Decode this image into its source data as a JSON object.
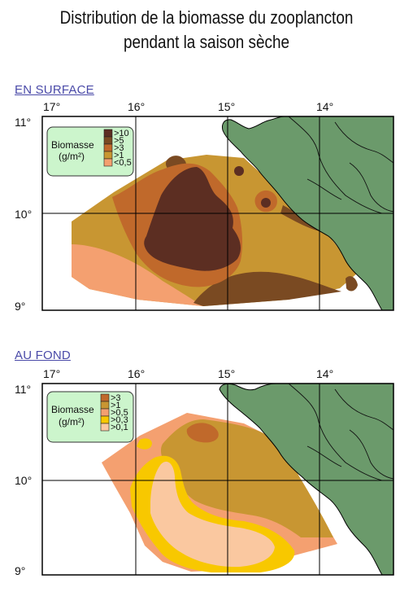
{
  "title_line1": "Distribution de la biomasse du zooplancton",
  "title_line2": "pendant la saison sèche",
  "maps": [
    {
      "id": "surface",
      "heading": "EN SURFACE",
      "legend_title_1": "Biomasse",
      "legend_title_2": "(g/m²)",
      "legend": [
        {
          "label": ">10",
          "color": "#5c2e22"
        },
        {
          "label": ">5",
          "color": "#7a4a22"
        },
        {
          "label": ">3",
          "color": "#c0692b"
        },
        {
          "label": ">1",
          "color": "#c89632"
        },
        {
          "label": "<0,5",
          "color": "#f4a070"
        }
      ]
    },
    {
      "id": "fond",
      "heading": "AU FOND",
      "legend_title_1": "Biomasse",
      "legend_title_2": "(g/m²)",
      "legend": [
        {
          "label": ">3",
          "color": "#c0692b"
        },
        {
          "label": ">1",
          "color": "#c89632"
        },
        {
          "label": ">0,5",
          "color": "#f4a070"
        },
        {
          "label": ">0,3",
          "color": "#f8c800"
        },
        {
          "label": ">0,1",
          "color": "#fac8a0"
        }
      ]
    }
  ],
  "lon_labels": [
    "17°",
    "16°",
    "15°",
    "14°"
  ],
  "lat_labels": [
    "11°",
    "10°",
    "9°"
  ],
  "colors": {
    "land": "#6b9a6b",
    "legend_bg": "#ccf5cc",
    "grid": "#000000"
  }
}
